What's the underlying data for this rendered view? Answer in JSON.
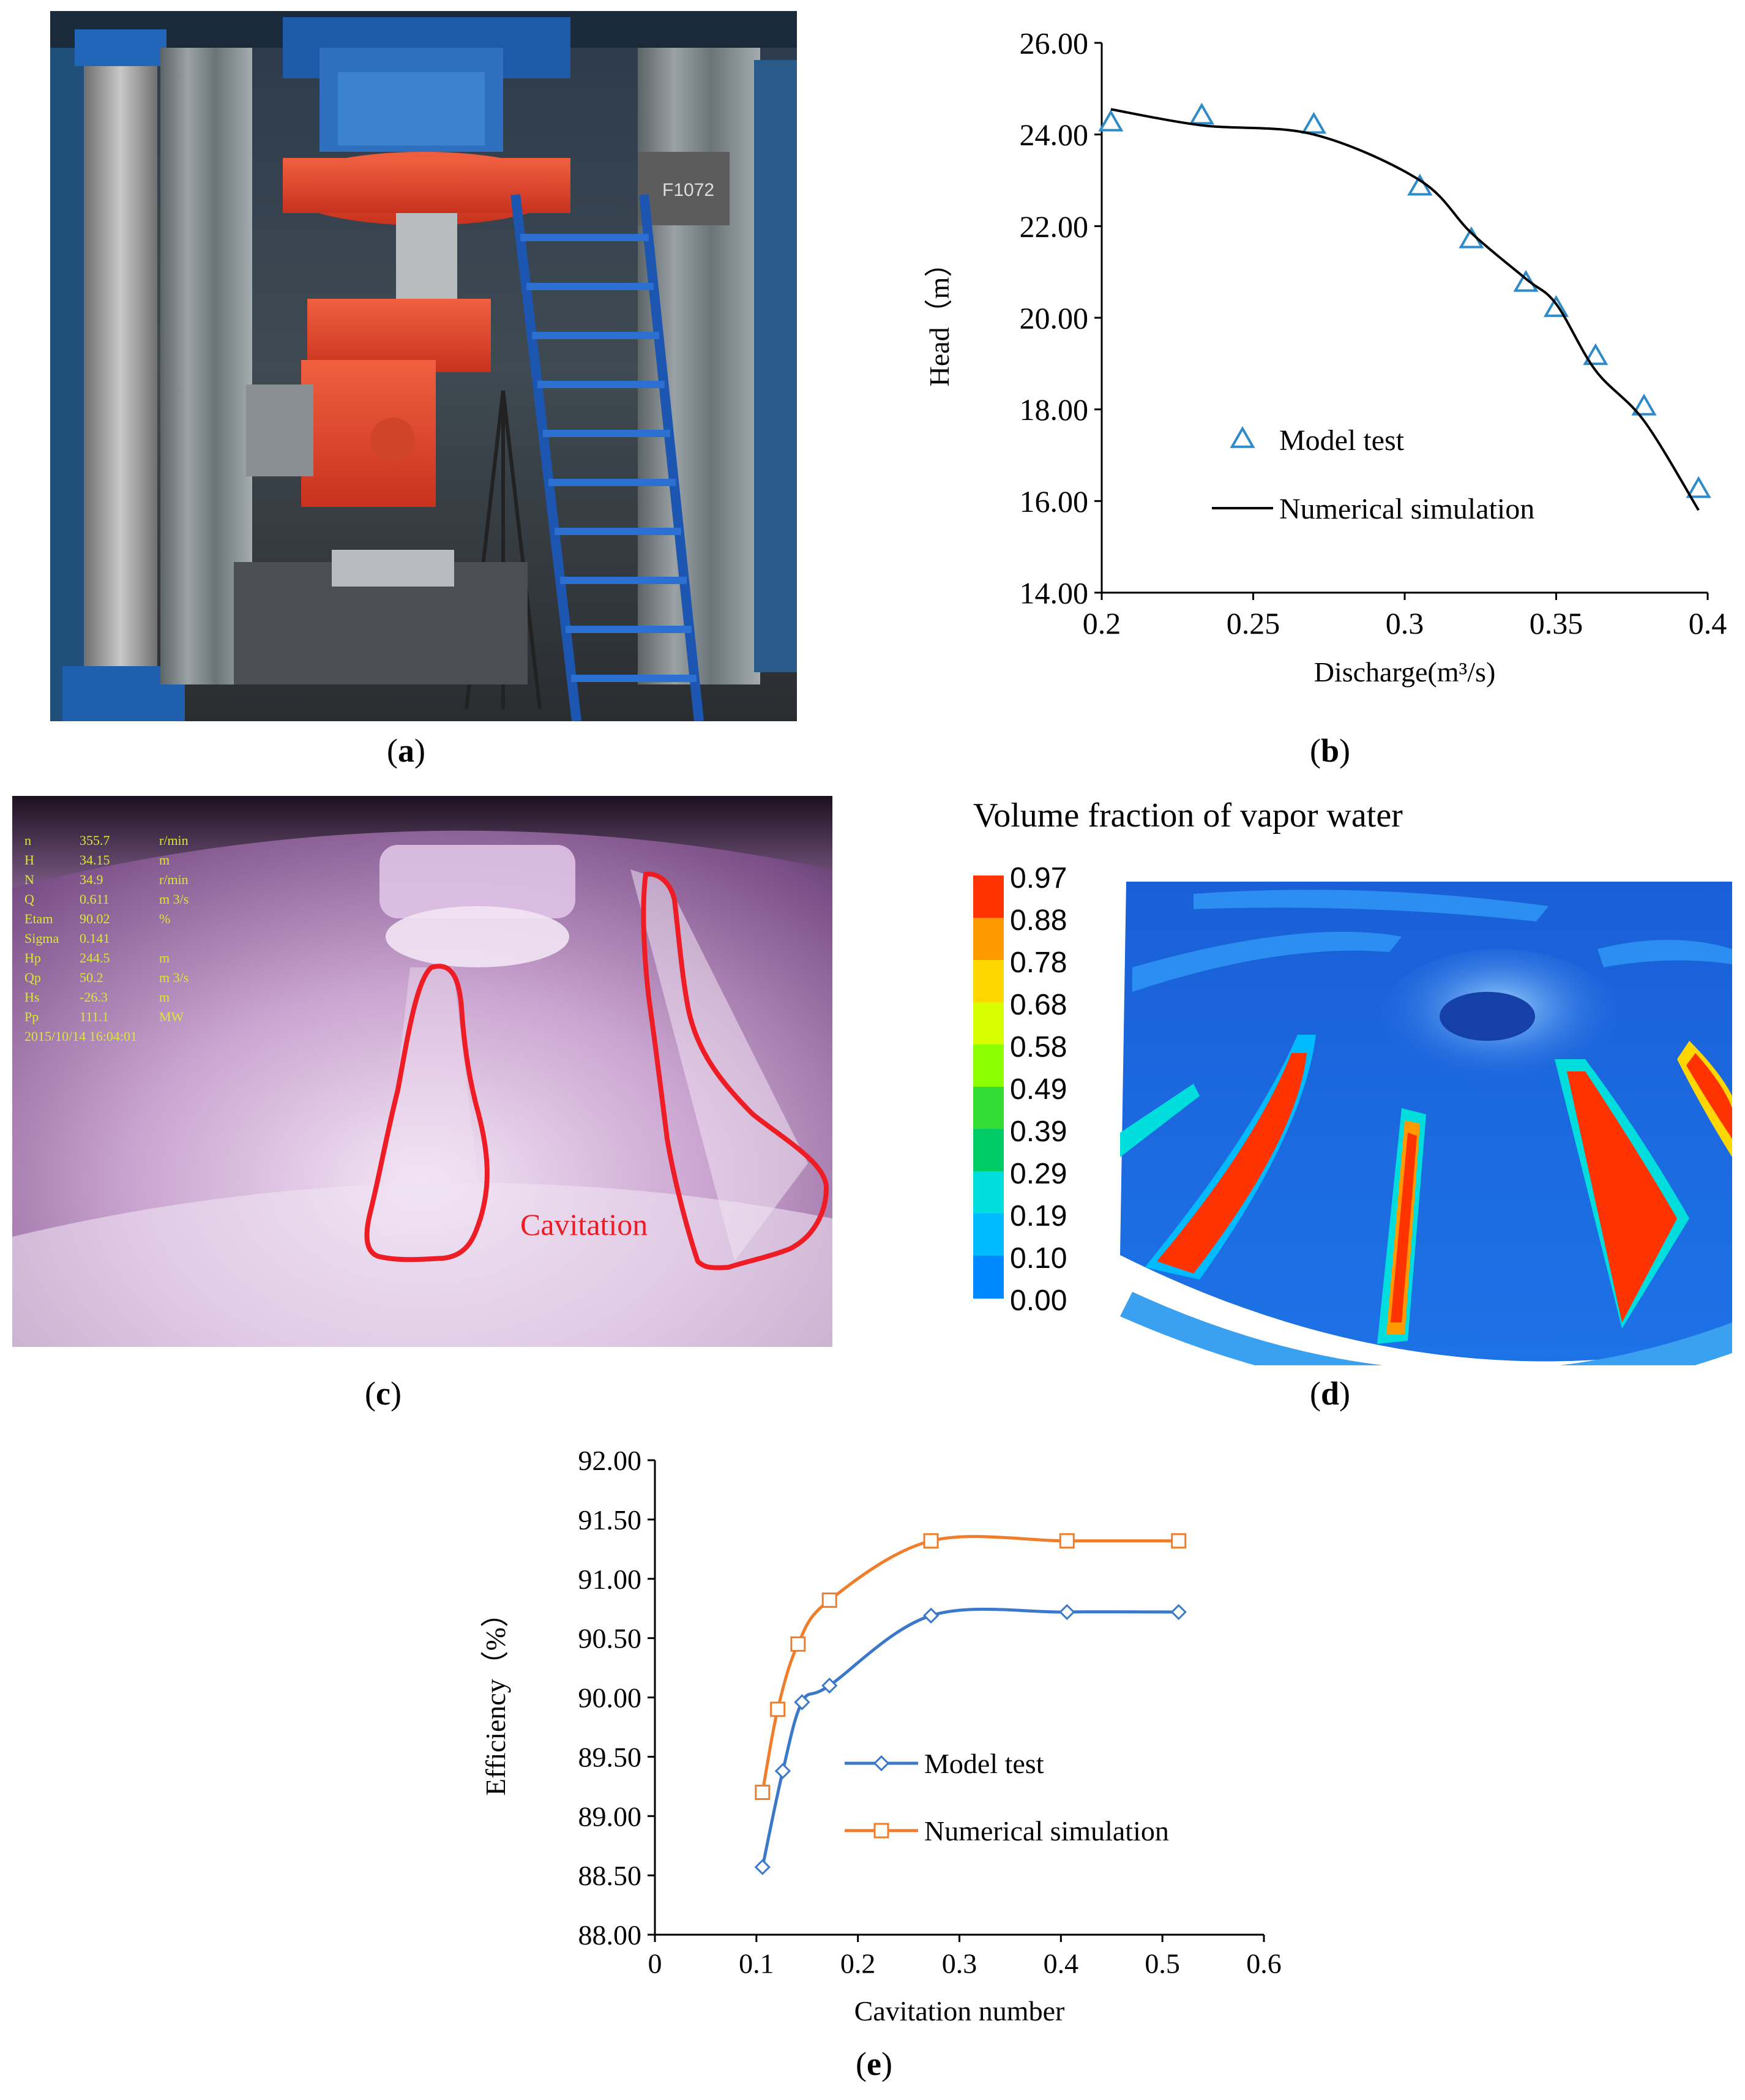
{
  "captions": {
    "a": "a",
    "b": "b",
    "c": "c",
    "d": "d",
    "e": "e"
  },
  "photo_a": {
    "label_tag": "F1072"
  },
  "photo_c": {
    "overlay_lines": [
      [
        "n",
        "355.7",
        "r/min"
      ],
      [
        "H",
        "34.15",
        "m"
      ],
      [
        "N",
        "34.9",
        "r/min"
      ],
      [
        "Q",
        "0.611",
        "m 3/s"
      ],
      [
        "Etam",
        "90.02",
        "%"
      ],
      [
        "Sigma",
        "0.141",
        ""
      ],
      [
        "Hp",
        "244.5",
        "m"
      ],
      [
        "Qp",
        "50.2",
        "m 3/s"
      ],
      [
        "Hs",
        "-26.3",
        "m"
      ],
      [
        "Pp",
        "111.1",
        "MW"
      ]
    ],
    "timestamp": "2015/10/14  16:04:01",
    "annotation": "Cavitation",
    "annotation_color": "#ee1c25"
  },
  "contour_d": {
    "title": "Volume  fraction of vapor water",
    "legend_levels": [
      "0.97",
      "0.88",
      "0.78",
      "0.68",
      "0.58",
      "0.49",
      "0.39",
      "0.29",
      "0.19",
      "0.10",
      "0.00"
    ],
    "legend_colors": [
      "#ff3300",
      "#ff9900",
      "#ffd700",
      "#d8ff00",
      "#8cff00",
      "#33dd33",
      "#00cc66",
      "#00dddd",
      "#00bbff",
      "#0088ff",
      "#0044ee"
    ]
  },
  "chart_data": [
    {
      "id": "b",
      "type": "line",
      "xlabel": "Discharge(m³/s)",
      "ylabel": "Head（m）",
      "xlim": [
        0.2,
        0.4
      ],
      "ylim": [
        14.0,
        26.0
      ],
      "xticks": [
        "0.2",
        "0.25",
        "0.3",
        "0.35",
        "0.4"
      ],
      "yticks": [
        "14.00",
        "16.00",
        "18.00",
        "20.00",
        "22.00",
        "24.00",
        "26.00"
      ],
      "legend_position": "center",
      "series": [
        {
          "name": "Model test",
          "marker": "triangle",
          "color": "#2e8bc9",
          "x": [
            0.203,
            0.233,
            0.27,
            0.305,
            0.322,
            0.34,
            0.35,
            0.363,
            0.379,
            0.397
          ],
          "y": [
            24.25,
            24.4,
            24.2,
            22.85,
            21.7,
            20.75,
            20.2,
            19.15,
            18.05,
            16.25
          ]
        },
        {
          "name": "Numerical simulation",
          "marker": "none",
          "color": "#000000",
          "x": [
            0.203,
            0.233,
            0.27,
            0.305,
            0.322,
            0.34,
            0.35,
            0.363,
            0.379,
            0.397
          ],
          "y": [
            24.55,
            24.2,
            24.0,
            23.0,
            21.85,
            20.85,
            20.3,
            18.85,
            17.75,
            15.8
          ]
        }
      ]
    },
    {
      "id": "e",
      "type": "line",
      "xlabel": "Cavitation number",
      "ylabel": "Efficiency（%）",
      "xlim": [
        0,
        0.6
      ],
      "ylim": [
        88.0,
        92.0
      ],
      "xticks": [
        "0",
        "0.1",
        "0.2",
        "0.3",
        "0.4",
        "0.5",
        "0.6"
      ],
      "yticks": [
        "88.00",
        "88.50",
        "89.00",
        "89.50",
        "90.00",
        "90.50",
        "91.00",
        "91.50",
        "92.00"
      ],
      "legend_position": "center-right",
      "series": [
        {
          "name": "Model test",
          "marker": "diamond",
          "color": "#3a78c9",
          "x": [
            0.106,
            0.126,
            0.145,
            0.172,
            0.272,
            0.406,
            0.516
          ],
          "y": [
            88.57,
            89.38,
            89.96,
            90.1,
            90.69,
            90.72,
            90.72
          ]
        },
        {
          "name": "Numerical simulation",
          "marker": "square",
          "color": "#f07d2a",
          "x": [
            0.106,
            0.121,
            0.141,
            0.172,
            0.272,
            0.406,
            0.516
          ],
          "y": [
            89.2,
            89.9,
            90.45,
            90.82,
            91.32,
            91.32,
            91.32
          ]
        }
      ]
    }
  ]
}
